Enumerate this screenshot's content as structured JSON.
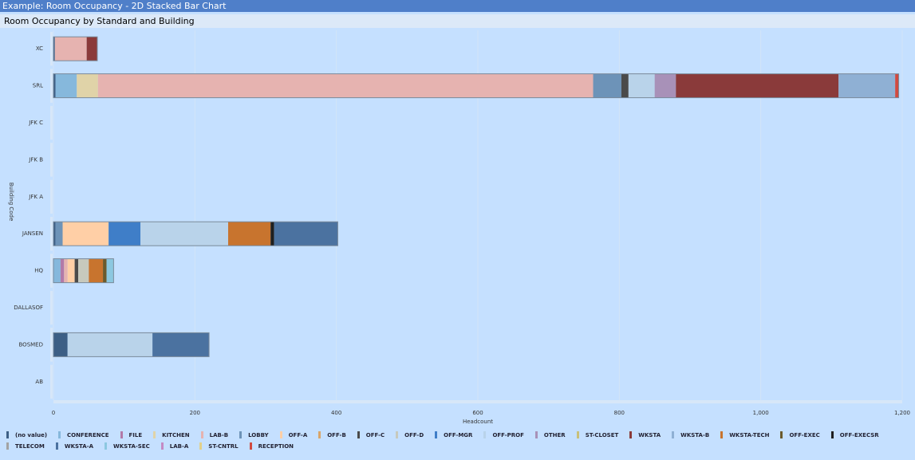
{
  "window_title": "Example: Room Occupancy - 2D Stacked Bar Chart",
  "chart_data": {
    "type": "stacked-bar-horizontal",
    "title": "Room Occupancy by Standard and Building",
    "x_label": "Headcount",
    "y_label": "Building Code",
    "categories": [
      "XC",
      "SRL",
      "JFK C",
      "JFK B",
      "JFK A",
      "JANSEN",
      "HQ",
      "DALLASOF",
      "BOSMED",
      "AB"
    ],
    "xlim": [
      0,
      1200
    ],
    "xticks": [
      0,
      200,
      400,
      600,
      800,
      {
        "value": 1000,
        "label": "1,000"
      },
      {
        "value": 1200,
        "label": "1,200"
      }
    ],
    "grid": true,
    "series": [
      {
        "name": "(no value)",
        "color": "#3d5f85",
        "values": [
          2,
          3,
          0,
          0,
          0,
          3,
          0,
          0,
          20,
          0
        ]
      },
      {
        "name": "CONFERENCE",
        "color": "#86b8dc",
        "values": [
          0,
          30,
          0,
          0,
          0,
          0,
          10,
          0,
          0,
          0
        ]
      },
      {
        "name": "FILE",
        "color": "#b27aa8",
        "values": [
          0,
          0,
          0,
          0,
          0,
          0,
          5,
          0,
          0,
          0
        ]
      },
      {
        "name": "KITCHEN",
        "color": "#e0d3a8",
        "values": [
          0,
          30,
          0,
          0,
          0,
          0,
          0,
          0,
          0,
          0
        ]
      },
      {
        "name": "LAB-B",
        "color": "#e6b3b0",
        "values": [
          45,
          700,
          0,
          0,
          0,
          0,
          5,
          0,
          0,
          0
        ]
      },
      {
        "name": "LOBBY",
        "color": "#6d93b8",
        "values": [
          0,
          40,
          0,
          0,
          0,
          10,
          0,
          0,
          0,
          0
        ]
      },
      {
        "name": "OFF-A",
        "color": "#ffcfa6",
        "values": [
          0,
          0,
          0,
          0,
          0,
          65,
          10,
          0,
          0,
          0
        ]
      },
      {
        "name": "OFF-B",
        "color": "#d9a56a",
        "values": [
          0,
          0,
          0,
          0,
          0,
          0,
          0,
          0,
          0,
          0
        ]
      },
      {
        "name": "OFF-C",
        "color": "#4a4a4a",
        "values": [
          0,
          10,
          0,
          0,
          0,
          0,
          5,
          0,
          0,
          0
        ]
      },
      {
        "name": "OFF-D",
        "color": "#c7c9bd",
        "values": [
          0,
          0,
          0,
          0,
          0,
          0,
          15,
          0,
          0,
          0
        ]
      },
      {
        "name": "OFF-MGR",
        "color": "#3f7ec8",
        "values": [
          0,
          0,
          0,
          0,
          0,
          45,
          0,
          0,
          0,
          0
        ]
      },
      {
        "name": "OFF-PROF",
        "color": "#b9d3ea",
        "values": [
          0,
          37,
          0,
          0,
          0,
          124,
          0,
          0,
          120,
          0
        ]
      },
      {
        "name": "OTHER",
        "color": "#a891b8",
        "values": [
          0,
          30,
          0,
          0,
          0,
          0,
          0,
          0,
          0,
          0
        ]
      },
      {
        "name": "ST-CLOSET",
        "color": "#c9c07a",
        "values": [
          0,
          0,
          0,
          0,
          0,
          0,
          0,
          0,
          0,
          0
        ]
      },
      {
        "name": "WKSTA",
        "color": "#8a3a3a",
        "values": [
          15,
          230,
          0,
          0,
          0,
          0,
          0,
          0,
          0,
          0
        ]
      },
      {
        "name": "WKSTA-B",
        "color": "#8fb0d4",
        "values": [
          0,
          80,
          0,
          0,
          0,
          0,
          0,
          0,
          0,
          0
        ]
      },
      {
        "name": "WKSTA-TECH",
        "color": "#c8742e",
        "values": [
          0,
          0,
          0,
          0,
          0,
          60,
          20,
          0,
          0,
          0
        ]
      },
      {
        "name": "OFF-EXEC",
        "color": "#6b5a2c",
        "values": [
          0,
          0,
          0,
          0,
          0,
          0,
          5,
          0,
          0,
          0
        ]
      },
      {
        "name": "OFF-EXECSR",
        "color": "#1f1f1f",
        "values": [
          0,
          0,
          0,
          0,
          0,
          5,
          0,
          0,
          0,
          0
        ]
      },
      {
        "name": "TELECOM",
        "color": "#a3a3a3",
        "values": [
          0,
          0,
          0,
          0,
          0,
          0,
          0,
          0,
          0,
          0
        ]
      },
      {
        "name": "WKSTA-A",
        "color": "#4b72a0",
        "values": [
          0,
          0,
          0,
          0,
          0,
          90,
          0,
          0,
          80,
          0
        ]
      },
      {
        "name": "WKSTA-SEC",
        "color": "#8cc8e0",
        "values": [
          0,
          0,
          0,
          0,
          0,
          0,
          10,
          0,
          0,
          0
        ]
      },
      {
        "name": "LAB-A",
        "color": "#c48ac4",
        "values": [
          0,
          0,
          0,
          0,
          0,
          0,
          0,
          0,
          0,
          0
        ]
      },
      {
        "name": "ST-CNTRL",
        "color": "#e2d08a",
        "values": [
          0,
          0,
          0,
          0,
          0,
          0,
          0,
          0,
          0,
          0
        ]
      },
      {
        "name": "RECEPTION",
        "color": "#d04a40",
        "values": [
          0,
          5,
          0,
          0,
          0,
          0,
          0,
          0,
          0,
          0
        ]
      }
    ]
  }
}
